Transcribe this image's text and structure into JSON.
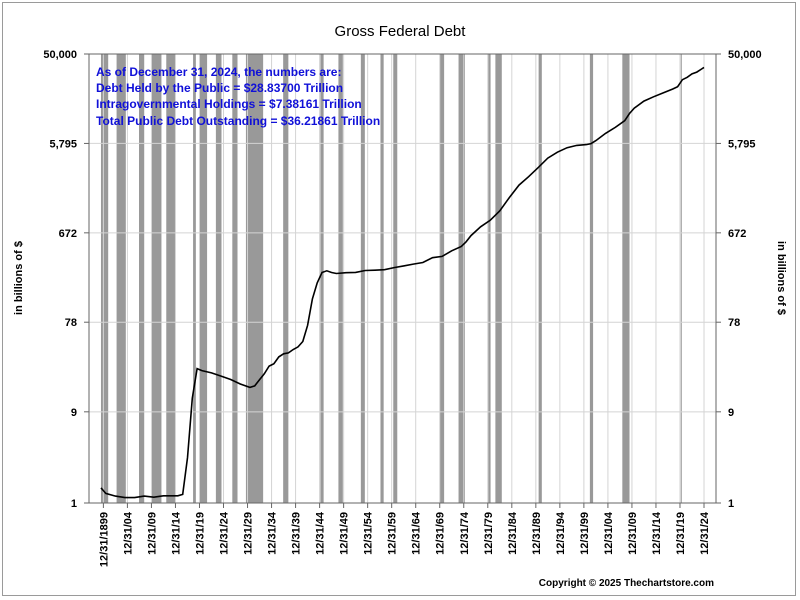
{
  "chart_data": {
    "type": "line",
    "title": "Gross Federal Debt",
    "ylabel": "in billions of $",
    "y_scale": "log",
    "ylim": [
      1,
      50000
    ],
    "xlim": [
      "1897-01-01",
      "2027-06-30"
    ],
    "y_ticks": [
      1,
      9,
      78,
      672,
      5795,
      50000
    ],
    "y_tick_labels": [
      "1",
      "9",
      "78",
      "672",
      "5,795",
      "50,000"
    ],
    "x_tick_labels": [
      "12/31/1899",
      "12/31/04",
      "12/31/09",
      "12/31/14",
      "12/31/19",
      "12/31/24",
      "12/31/29",
      "12/31/34",
      "12/31/39",
      "12/31/44",
      "12/31/49",
      "12/31/54",
      "12/31/59",
      "12/31/64",
      "12/31/69",
      "12/31/74",
      "12/31/79",
      "12/31/84",
      "12/31/89",
      "12/31/94",
      "12/31/99",
      "12/31/04",
      "12/31/09",
      "12/31/14",
      "12/31/19",
      "12/31/24"
    ],
    "x_tick_dates": [
      "1899-12-31",
      "1904-12-31",
      "1909-12-31",
      "1914-12-31",
      "1919-12-31",
      "1924-12-31",
      "1929-12-31",
      "1934-12-31",
      "1939-12-31",
      "1944-12-31",
      "1949-12-31",
      "1954-12-31",
      "1959-12-31",
      "1964-12-31",
      "1969-12-31",
      "1974-12-31",
      "1979-12-31",
      "1984-12-31",
      "1989-12-31",
      "1994-12-31",
      "1999-12-31",
      "2004-12-31",
      "2009-12-31",
      "2014-12-31",
      "2019-12-31",
      "2024-12-31"
    ],
    "grid": true,
    "recessions": [
      [
        "1899-06-30",
        "1900-12-31"
      ],
      [
        "1902-09-30",
        "1904-08-31"
      ],
      [
        "1907-05-31",
        "1908-06-30"
      ],
      [
        "1910-01-31",
        "1912-01-31"
      ],
      [
        "1913-01-31",
        "1914-12-31"
      ],
      [
        "1918-08-31",
        "1919-03-31"
      ],
      [
        "1920-01-31",
        "1921-07-31"
      ],
      [
        "1923-05-31",
        "1924-07-31"
      ],
      [
        "1926-10-31",
        "1927-11-30"
      ],
      [
        "1929-08-31",
        "1933-03-31"
      ],
      [
        "1937-05-31",
        "1938-06-30"
      ],
      [
        "1945-02-28",
        "1945-10-31"
      ],
      [
        "1948-11-30",
        "1949-10-31"
      ],
      [
        "1953-07-31",
        "1954-05-31"
      ],
      [
        "1957-08-31",
        "1958-04-30"
      ],
      [
        "1960-04-30",
        "1961-02-28"
      ],
      [
        "1969-12-31",
        "1970-11-30"
      ],
      [
        "1973-11-30",
        "1975-03-31"
      ],
      [
        "1980-01-31",
        "1980-07-31"
      ],
      [
        "1981-07-31",
        "1982-11-30"
      ],
      [
        "1990-07-31",
        "1991-03-31"
      ],
      [
        "2001-03-31",
        "2001-11-30"
      ],
      [
        "2007-12-31",
        "2009-06-30"
      ],
      [
        "2020-02-29",
        "2020-04-30"
      ]
    ],
    "series": [
      {
        "points": [
          [
            "1899-06-30",
            1.44
          ],
          [
            "1900-06-30",
            1.26
          ],
          [
            "1902-06-30",
            1.18
          ],
          [
            "1904-06-30",
            1.14
          ],
          [
            "1906-06-30",
            1.14
          ],
          [
            "1908-06-30",
            1.18
          ],
          [
            "1910-06-30",
            1.15
          ],
          [
            "1912-06-30",
            1.19
          ],
          [
            "1914-06-30",
            1.19
          ],
          [
            "1915-06-30",
            1.19
          ],
          [
            "1916-06-30",
            1.23
          ],
          [
            "1917-06-30",
            2.98
          ],
          [
            "1918-06-30",
            12.5
          ],
          [
            "1919-06-30",
            25.5
          ],
          [
            "1920-06-30",
            24.3
          ],
          [
            "1922-06-30",
            23.0
          ],
          [
            "1924-06-30",
            21.3
          ],
          [
            "1926-06-30",
            19.6
          ],
          [
            "1928-06-30",
            17.6
          ],
          [
            "1930-06-30",
            16.2
          ],
          [
            "1931-06-30",
            16.8
          ],
          [
            "1932-06-30",
            19.5
          ],
          [
            "1933-06-30",
            22.5
          ],
          [
            "1934-06-30",
            27.1
          ],
          [
            "1935-06-30",
            28.7
          ],
          [
            "1936-06-30",
            33.8
          ],
          [
            "1937-06-30",
            36.4
          ],
          [
            "1938-06-30",
            37.2
          ],
          [
            "1939-06-30",
            40.4
          ],
          [
            "1940-06-30",
            43.0
          ],
          [
            "1941-06-30",
            49.0
          ],
          [
            "1942-06-30",
            72.4
          ],
          [
            "1943-06-30",
            136.7
          ],
          [
            "1944-06-30",
            201.0
          ],
          [
            "1945-06-30",
            258.7
          ],
          [
            "1946-06-30",
            269.4
          ],
          [
            "1947-06-30",
            258.3
          ],
          [
            "1948-06-30",
            252.3
          ],
          [
            "1950-06-30",
            257.4
          ],
          [
            "1952-06-30",
            259.1
          ],
          [
            "1954-06-30",
            271.3
          ],
          [
            "1956-06-30",
            272.8
          ],
          [
            "1958-06-30",
            276.3
          ],
          [
            "1960-06-30",
            290.5
          ],
          [
            "1962-06-30",
            302.9
          ],
          [
            "1964-06-30",
            316.1
          ],
          [
            "1966-06-30",
            328.5
          ],
          [
            "1968-06-30",
            368.7
          ],
          [
            "1970-06-30",
            380.9
          ],
          [
            "1972-06-30",
            435.9
          ],
          [
            "1974-06-30",
            483.9
          ],
          [
            "1975-06-30",
            541.9
          ],
          [
            "1976-06-30",
            628.9
          ],
          [
            "1978-06-30",
            776.6
          ],
          [
            "1980-06-30",
            908.5
          ],
          [
            "1982-06-30",
            1142
          ],
          [
            "1984-06-30",
            1573
          ],
          [
            "1986-06-30",
            2125
          ],
          [
            "1988-06-30",
            2602
          ],
          [
            "1990-06-30",
            3233
          ],
          [
            "1992-06-30",
            4065
          ],
          [
            "1994-06-30",
            4693
          ],
          [
            "1996-06-30",
            5225
          ],
          [
            "1998-06-30",
            5526
          ],
          [
            "2000-06-30",
            5629
          ],
          [
            "2001-06-30",
            5770
          ],
          [
            "2002-06-30",
            6198
          ],
          [
            "2004-06-30",
            7379
          ],
          [
            "2006-06-30",
            8507
          ],
          [
            "2008-06-30",
            10025
          ],
          [
            "2009-06-30",
            11910
          ],
          [
            "2010-06-30",
            13562
          ],
          [
            "2012-06-30",
            16066
          ],
          [
            "2014-06-30",
            17824
          ],
          [
            "2016-06-30",
            19573
          ],
          [
            "2018-06-30",
            21516
          ],
          [
            "2019-06-30",
            22719
          ],
          [
            "2020-06-30",
            26945
          ],
          [
            "2021-06-30",
            28529
          ],
          [
            "2022-06-30",
            30929
          ],
          [
            "2023-06-30",
            32333
          ],
          [
            "2024-06-30",
            34832
          ],
          [
            "2024-12-31",
            36219
          ]
        ]
      }
    ],
    "annotations": [
      "As of December 31, 2024, the numbers are:",
      "Debt Held by the Public = $28.83700 Trillion",
      "Intragovernmental Holdings = $7.38161 Trillion",
      "Total Public Debt Outstanding = $36.21861 Trillion"
    ],
    "copyright": "Copyright © 2025 Thechartstore.com"
  },
  "colors": {
    "recession": "#999999",
    "grid": "#d4d4d4",
    "line": "#000000",
    "annotation": "#1010d8",
    "axis": "#666666"
  }
}
